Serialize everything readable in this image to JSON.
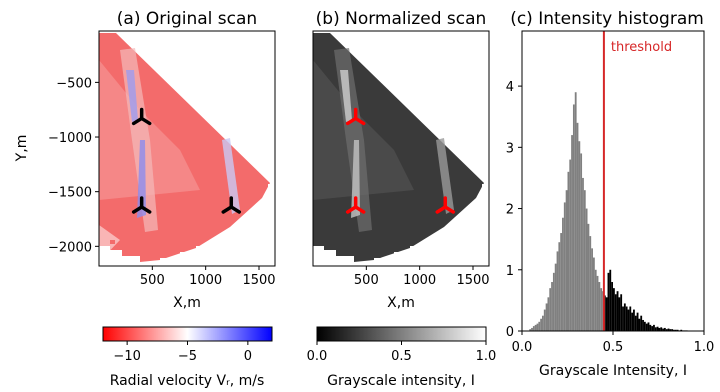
{
  "chart_data": [
    {
      "type": "heatmap",
      "title": "(a) Original scan",
      "xlabel": "X,m",
      "ylabel": "Y,m",
      "xlim": [
        0,
        1650
      ],
      "ylim": [
        -2180,
        -30
      ],
      "x_ticks": [
        "500",
        "1000",
        "1500"
      ],
      "x_tick_values": [
        500,
        1000,
        1500
      ],
      "y_ticks": [
        "−500",
        "−1000",
        "−1500",
        "−2000"
      ],
      "y_tick_values": [
        -500,
        -1000,
        -1500,
        -2000
      ],
      "colorbar": {
        "label": "Radial velocity Vᵣ, m/s",
        "ticks": [
          "−10",
          "−5",
          "0"
        ],
        "tick_values": [
          -10,
          -5,
          0
        ],
        "range": [
          -12,
          2
        ],
        "colors": [
          "#ff0000",
          "#ffffff",
          "#0000ff"
        ]
      },
      "markers": [
        {
          "x": 400,
          "y": -830,
          "color": "#000000"
        },
        {
          "x": 400,
          "y": -1640,
          "color": "#000000"
        },
        {
          "x": 1240,
          "y": -1640,
          "color": "#000000"
        }
      ]
    },
    {
      "type": "heatmap",
      "title": "(b) Normalized scan",
      "xlabel": "X,m",
      "xlim": [
        0,
        1650
      ],
      "ylim": [
        -2180,
        -30
      ],
      "x_ticks": [
        "500",
        "1000",
        "1500"
      ],
      "x_tick_values": [
        500,
        1000,
        1500
      ],
      "colorbar": {
        "label": "Grayscale intensity, I",
        "ticks": [
          "0.0",
          "0.5",
          "1.0"
        ],
        "tick_values": [
          0,
          0.5,
          1
        ],
        "range": [
          0,
          1
        ],
        "colors": [
          "#000000",
          "#ffffff"
        ]
      },
      "markers": [
        {
          "x": 400,
          "y": -830,
          "color": "#ff0000"
        },
        {
          "x": 400,
          "y": -1640,
          "color": "#ff0000"
        },
        {
          "x": 1240,
          "y": -1640,
          "color": "#ff0000"
        }
      ]
    },
    {
      "type": "bar",
      "title": "(c) Intensity histogram",
      "xlabel": "Grayscale Intensity, I",
      "xlim": [
        0,
        1
      ],
      "ylim": [
        0,
        4.9
      ],
      "x_ticks": [
        "0.0",
        "0.5",
        "1.0"
      ],
      "x_tick_values": [
        0,
        0.5,
        1
      ],
      "y_ticks": [
        "0",
        "1",
        "2",
        "3",
        "4"
      ],
      "y_tick_values": [
        0,
        1,
        2,
        3,
        4
      ],
      "threshold": {
        "x": 0.45,
        "label": "threshold",
        "color": "#d62728"
      },
      "below_color": "#808080",
      "above_color": "#000000",
      "bin_width": 0.01,
      "bins_start": [
        0.04,
        0.05,
        0.06,
        0.07,
        0.08,
        0.09,
        0.1,
        0.11,
        0.12,
        0.13,
        0.14,
        0.15,
        0.16,
        0.17,
        0.18,
        0.19,
        0.2,
        0.21,
        0.22,
        0.23,
        0.24,
        0.25,
        0.26,
        0.27,
        0.28,
        0.29,
        0.3,
        0.31,
        0.32,
        0.33,
        0.34,
        0.35,
        0.36,
        0.37,
        0.38,
        0.39,
        0.4,
        0.41,
        0.42,
        0.43,
        0.44,
        0.45,
        0.46,
        0.47,
        0.48,
        0.49,
        0.5,
        0.51,
        0.52,
        0.53,
        0.54,
        0.55,
        0.56,
        0.57,
        0.58,
        0.59,
        0.6,
        0.61,
        0.62,
        0.63,
        0.64,
        0.65,
        0.66,
        0.67,
        0.68,
        0.69,
        0.7,
        0.71,
        0.72,
        0.73,
        0.74,
        0.75,
        0.76,
        0.77,
        0.78,
        0.79,
        0.8,
        0.81,
        0.82,
        0.83,
        0.84,
        0.85,
        0.86,
        0.87,
        0.88,
        0.89,
        0.9
      ],
      "values": [
        0.03,
        0.05,
        0.08,
        0.1,
        0.12,
        0.15,
        0.2,
        0.25,
        0.35,
        0.45,
        0.55,
        0.7,
        0.8,
        0.95,
        1.1,
        1.3,
        1.45,
        1.6,
        1.85,
        2.1,
        2.3,
        2.6,
        2.8,
        3.2,
        3.7,
        3.9,
        3.4,
        3.1,
        2.9,
        2.5,
        2.3,
        2.0,
        1.75,
        1.55,
        1.35,
        1.2,
        1.0,
        0.9,
        0.8,
        0.7,
        0.65,
        0.58,
        0.55,
        0.95,
        1.0,
        0.8,
        0.7,
        0.6,
        0.65,
        0.55,
        0.6,
        0.4,
        0.45,
        0.4,
        0.35,
        0.4,
        0.3,
        0.35,
        0.25,
        0.3,
        0.2,
        0.25,
        0.18,
        0.15,
        0.12,
        0.14,
        0.1,
        0.08,
        0.1,
        0.06,
        0.07,
        0.05,
        0.06,
        0.04,
        0.05,
        0.03,
        0.04,
        0.03,
        0.03,
        0.02,
        0.02,
        0.02,
        0.01,
        0.02,
        0.01,
        0.01,
        0.01
      ]
    }
  ]
}
